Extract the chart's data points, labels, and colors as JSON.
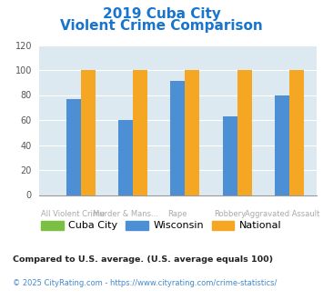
{
  "title_line1": "2019 Cuba City",
  "title_line2": "Violent Crime Comparison",
  "title_color": "#1874cd",
  "categories": [
    "All Violent Crime",
    "Murder & Mans...",
    "Rape",
    "Robbery",
    "Aggravated Assault"
  ],
  "cat_line1": [
    "",
    "Murder & Mans...",
    "",
    "Robbery",
    ""
  ],
  "cat_line2": [
    "All Violent Crime",
    "",
    "Rape",
    "",
    "Aggravated Assault"
  ],
  "cuba_city": [
    0,
    0,
    0,
    0,
    0
  ],
  "wisconsin": [
    77,
    60,
    91,
    63,
    80
  ],
  "national": [
    100,
    100,
    100,
    100,
    100
  ],
  "cuba_city_color": "#7bc043",
  "wisconsin_color": "#4d8fd4",
  "national_color": "#f5a623",
  "ylim": [
    0,
    120
  ],
  "yticks": [
    0,
    20,
    40,
    60,
    80,
    100,
    120
  ],
  "plot_bg": "#dce9f0",
  "legend_labels": [
    "Cuba City",
    "Wisconsin",
    "National"
  ],
  "footnote1": "Compared to U.S. average. (U.S. average equals 100)",
  "footnote2": "© 2025 CityRating.com - https://www.cityrating.com/crime-statistics/",
  "footnote1_color": "#222222",
  "footnote2_color": "#4488cc",
  "label_color": "#aaaaaa"
}
